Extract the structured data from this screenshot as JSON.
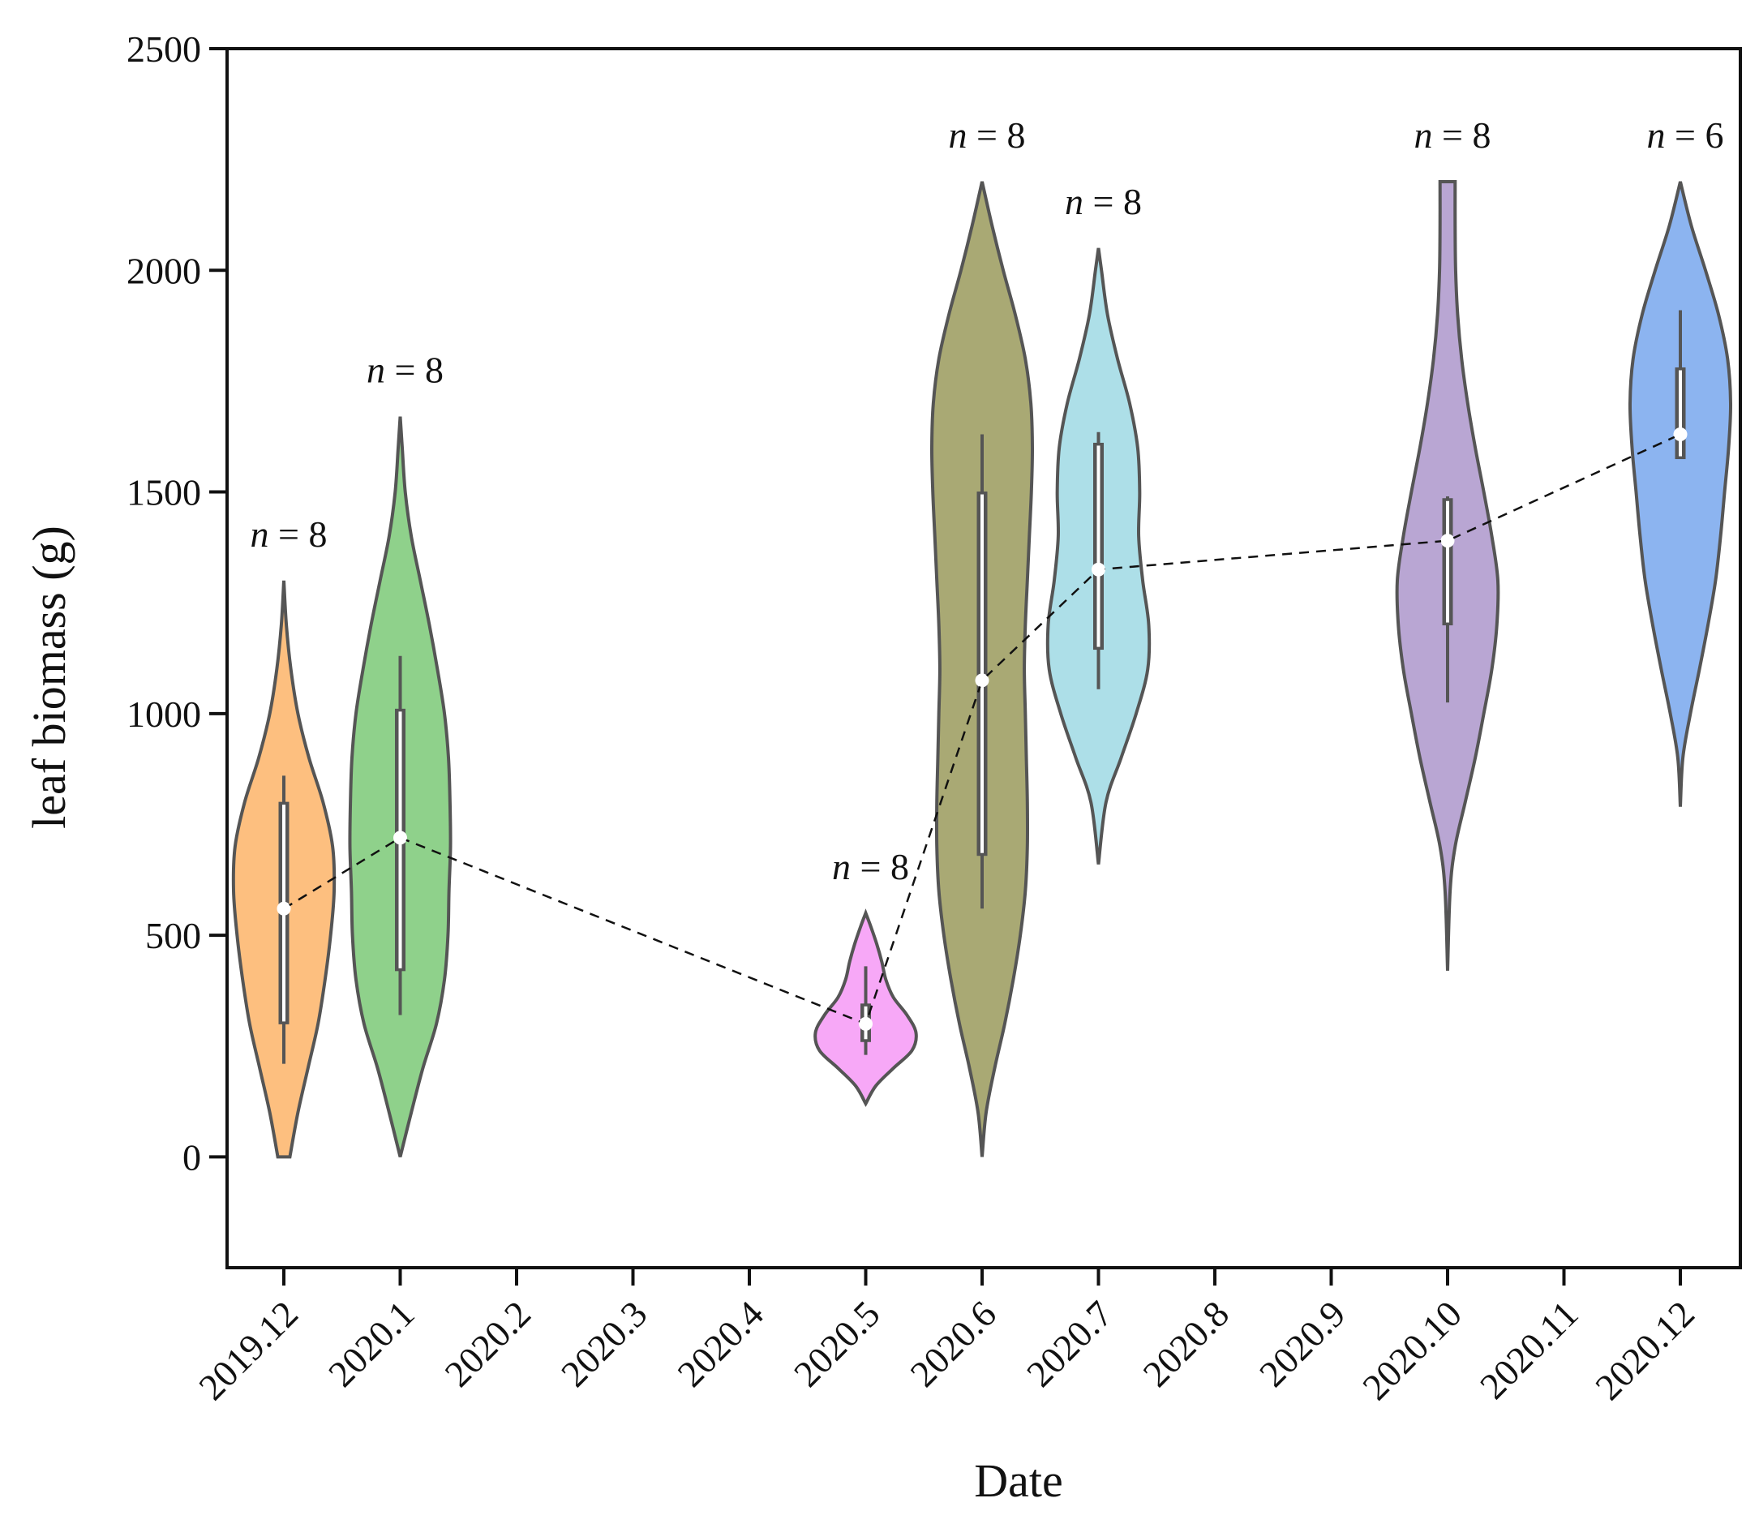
{
  "chart_data": {
    "type": "violin",
    "title": "",
    "xlabel": "Date",
    "ylabel": "leaf biomass (g)",
    "ylim": [
      -250,
      2500
    ],
    "yticks": [
      0,
      500,
      1000,
      1500,
      2000,
      2500
    ],
    "categories": [
      "2019.12",
      "2020.1",
      "2020.2",
      "2020.3",
      "2020.4",
      "2020.5",
      "2020.6",
      "2020.7",
      "2020.8",
      "2020.9",
      "2020.10",
      "2020.11",
      "2020.12"
    ],
    "n_prefix": "n",
    "series": [
      {
        "name": "2019.12",
        "color": "#FDBF7F",
        "n_label": "= 8",
        "median": 560,
        "q1": 300,
        "q3": 800,
        "whisker_low": 210,
        "whisker_high": 860,
        "density": [
          [
            0,
            0.12
          ],
          [
            100,
            0.28
          ],
          [
            200,
            0.48
          ],
          [
            300,
            0.68
          ],
          [
            400,
            0.82
          ],
          [
            500,
            0.93
          ],
          [
            600,
            1.0
          ],
          [
            700,
            0.97
          ],
          [
            800,
            0.78
          ],
          [
            900,
            0.5
          ],
          [
            1000,
            0.28
          ],
          [
            1100,
            0.14
          ],
          [
            1200,
            0.05
          ],
          [
            1300,
            0.0
          ]
        ]
      },
      {
        "name": "2020.1",
        "color": "#8FD18B",
        "n_label": "= 8",
        "median": 720,
        "q1": 420,
        "q3": 1010,
        "whisker_low": 320,
        "whisker_high": 1130,
        "density": [
          [
            0,
            0.0
          ],
          [
            100,
            0.22
          ],
          [
            200,
            0.45
          ],
          [
            300,
            0.72
          ],
          [
            400,
            0.88
          ],
          [
            500,
            0.95
          ],
          [
            600,
            0.97
          ],
          [
            700,
            1.0
          ],
          [
            800,
            0.99
          ],
          [
            900,
            0.96
          ],
          [
            1000,
            0.88
          ],
          [
            1100,
            0.74
          ],
          [
            1200,
            0.58
          ],
          [
            1300,
            0.4
          ],
          [
            1400,
            0.22
          ],
          [
            1500,
            0.1
          ],
          [
            1600,
            0.04
          ],
          [
            1670,
            0.0
          ]
        ]
      },
      {
        "name": "2020.5",
        "color": "#F7A8F7",
        "n_label": "= 8",
        "median": 300,
        "q1": 260,
        "q3": 345,
        "whisker_low": 230,
        "whisker_high": 430,
        "density": [
          [
            120,
            0.0
          ],
          [
            160,
            0.2
          ],
          [
            200,
            0.55
          ],
          [
            240,
            0.92
          ],
          [
            280,
            1.0
          ],
          [
            320,
            0.82
          ],
          [
            360,
            0.55
          ],
          [
            400,
            0.4
          ],
          [
            440,
            0.32
          ],
          [
            480,
            0.22
          ],
          [
            520,
            0.1
          ],
          [
            550,
            0.0
          ]
        ]
      },
      {
        "name": "2020.6",
        "color": "#A9A974",
        "n_label": "= 8",
        "median": 1075,
        "q1": 680,
        "q3": 1500,
        "whisker_low": 560,
        "whisker_high": 1630,
        "density": [
          [
            0,
            0.0
          ],
          [
            100,
            0.08
          ],
          [
            200,
            0.25
          ],
          [
            300,
            0.45
          ],
          [
            400,
            0.62
          ],
          [
            500,
            0.76
          ],
          [
            600,
            0.86
          ],
          [
            700,
            0.9
          ],
          [
            800,
            0.9
          ],
          [
            900,
            0.88
          ],
          [
            1000,
            0.86
          ],
          [
            1100,
            0.84
          ],
          [
            1200,
            0.86
          ],
          [
            1300,
            0.9
          ],
          [
            1400,
            0.94
          ],
          [
            1500,
            0.98
          ],
          [
            1600,
            1.0
          ],
          [
            1700,
            0.97
          ],
          [
            1800,
            0.86
          ],
          [
            1900,
            0.66
          ],
          [
            2000,
            0.42
          ],
          [
            2100,
            0.2
          ],
          [
            2200,
            0.0
          ]
        ]
      },
      {
        "name": "2020.7",
        "color": "#ADDFE8",
        "n_label": "= 8",
        "median": 1325,
        "q1": 1145,
        "q3": 1610,
        "whisker_low": 1055,
        "whisker_high": 1635,
        "density": [
          [
            660,
            0.0
          ],
          [
            800,
            0.15
          ],
          [
            900,
            0.45
          ],
          [
            1000,
            0.75
          ],
          [
            1100,
            0.98
          ],
          [
            1200,
            1.0
          ],
          [
            1300,
            0.88
          ],
          [
            1400,
            0.8
          ],
          [
            1500,
            0.82
          ],
          [
            1600,
            0.78
          ],
          [
            1700,
            0.62
          ],
          [
            1800,
            0.38
          ],
          [
            1900,
            0.18
          ],
          [
            2000,
            0.06
          ],
          [
            2050,
            0.0
          ]
        ]
      },
      {
        "name": "2020.10",
        "color": "#B9A6D3",
        "n_label": "= 8",
        "median": 1390,
        "q1": 1200,
        "q3": 1485,
        "whisker_low": 1025,
        "whisker_high": 1490,
        "density": [
          [
            420,
            0.0
          ],
          [
            600,
            0.05
          ],
          [
            700,
            0.15
          ],
          [
            800,
            0.35
          ],
          [
            900,
            0.55
          ],
          [
            1000,
            0.72
          ],
          [
            1100,
            0.88
          ],
          [
            1200,
            0.98
          ],
          [
            1300,
            1.0
          ],
          [
            1400,
            0.88
          ],
          [
            1500,
            0.72
          ],
          [
            1600,
            0.55
          ],
          [
            1700,
            0.4
          ],
          [
            1800,
            0.28
          ],
          [
            1900,
            0.2
          ],
          [
            2000,
            0.16
          ],
          [
            2100,
            0.15
          ],
          [
            2200,
            0.15
          ]
        ]
      },
      {
        "name": "2020.12",
        "color": "#8CB4F0",
        "n_label": "= 6",
        "median": 1630,
        "q1": 1575,
        "q3": 1780,
        "whisker_low": 1575,
        "whisker_high": 1910,
        "density": [
          [
            790,
            0.0
          ],
          [
            900,
            0.05
          ],
          [
            1000,
            0.2
          ],
          [
            1100,
            0.38
          ],
          [
            1200,
            0.55
          ],
          [
            1300,
            0.7
          ],
          [
            1400,
            0.8
          ],
          [
            1500,
            0.88
          ],
          [
            1600,
            0.96
          ],
          [
            1700,
            1.0
          ],
          [
            1800,
            0.94
          ],
          [
            1900,
            0.76
          ],
          [
            2000,
            0.5
          ],
          [
            2100,
            0.22
          ],
          [
            2200,
            0.0
          ]
        ]
      }
    ],
    "median_trend": {
      "style": "dashed",
      "color": "#111111"
    }
  }
}
